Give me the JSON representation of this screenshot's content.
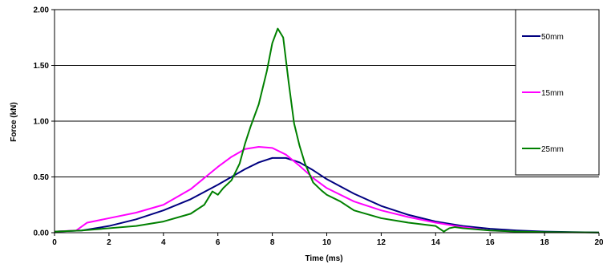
{
  "chart_data": {
    "type": "line",
    "title": "",
    "xlabel": "Time (ms)",
    "ylabel": "Force (kN)",
    "xlim": [
      0,
      20
    ],
    "ylim": [
      0,
      2
    ],
    "x_ticks": [
      "0",
      "2",
      "4",
      "6",
      "8",
      "10",
      "12",
      "14",
      "16",
      "18",
      "20"
    ],
    "y_ticks": [
      "0.00",
      "0.50",
      "1.00",
      "1.50",
      "2.00"
    ],
    "grid": "horizontal",
    "legend_position": "right",
    "series": [
      {
        "name": "50mm",
        "color": "#000080",
        "x": [
          0,
          1,
          2,
          3,
          4,
          5,
          6,
          6.5,
          7,
          7.5,
          8,
          8.5,
          9,
          9.5,
          10,
          11,
          12,
          13,
          14,
          15,
          16,
          17,
          18,
          19,
          20
        ],
        "y": [
          0.01,
          0.02,
          0.06,
          0.12,
          0.2,
          0.3,
          0.43,
          0.5,
          0.57,
          0.63,
          0.67,
          0.67,
          0.63,
          0.56,
          0.48,
          0.35,
          0.24,
          0.16,
          0.1,
          0.06,
          0.035,
          0.02,
          0.01,
          0.005,
          0.002
        ]
      },
      {
        "name": "15mm",
        "color": "#ff00ff",
        "x": [
          0,
          0.8,
          1.2,
          2,
          3,
          4,
          5,
          6,
          6.5,
          7,
          7.5,
          8,
          8.5,
          9,
          9.5,
          10,
          11,
          12,
          13,
          14,
          15,
          16,
          17
        ],
        "y": [
          0.01,
          0.02,
          0.09,
          0.13,
          0.18,
          0.25,
          0.39,
          0.59,
          0.68,
          0.75,
          0.77,
          0.76,
          0.7,
          0.6,
          0.49,
          0.4,
          0.28,
          0.2,
          0.14,
          0.09,
          0.05,
          0.02,
          0.01
        ]
      },
      {
        "name": "25mm",
        "color": "#008000",
        "x": [
          0,
          1,
          2,
          3,
          4,
          5,
          5.5,
          5.8,
          6,
          6.2,
          6.5,
          6.8,
          7,
          7.2,
          7.5,
          7.8,
          8,
          8.2,
          8.4,
          8.6,
          8.8,
          9,
          9.2,
          9.5,
          9.8,
          10,
          10.5,
          11,
          12,
          13,
          14,
          14.3,
          14.5,
          14.7,
          15,
          16,
          17,
          18,
          20
        ],
        "y": [
          0.01,
          0.02,
          0.04,
          0.06,
          0.1,
          0.17,
          0.25,
          0.37,
          0.34,
          0.4,
          0.47,
          0.62,
          0.8,
          0.95,
          1.15,
          1.45,
          1.7,
          1.83,
          1.75,
          1.35,
          0.98,
          0.78,
          0.62,
          0.45,
          0.38,
          0.34,
          0.28,
          0.2,
          0.13,
          0.09,
          0.06,
          0.01,
          0.04,
          0.05,
          0.04,
          0.02,
          0.01,
          0.005,
          0.002
        ]
      }
    ]
  }
}
